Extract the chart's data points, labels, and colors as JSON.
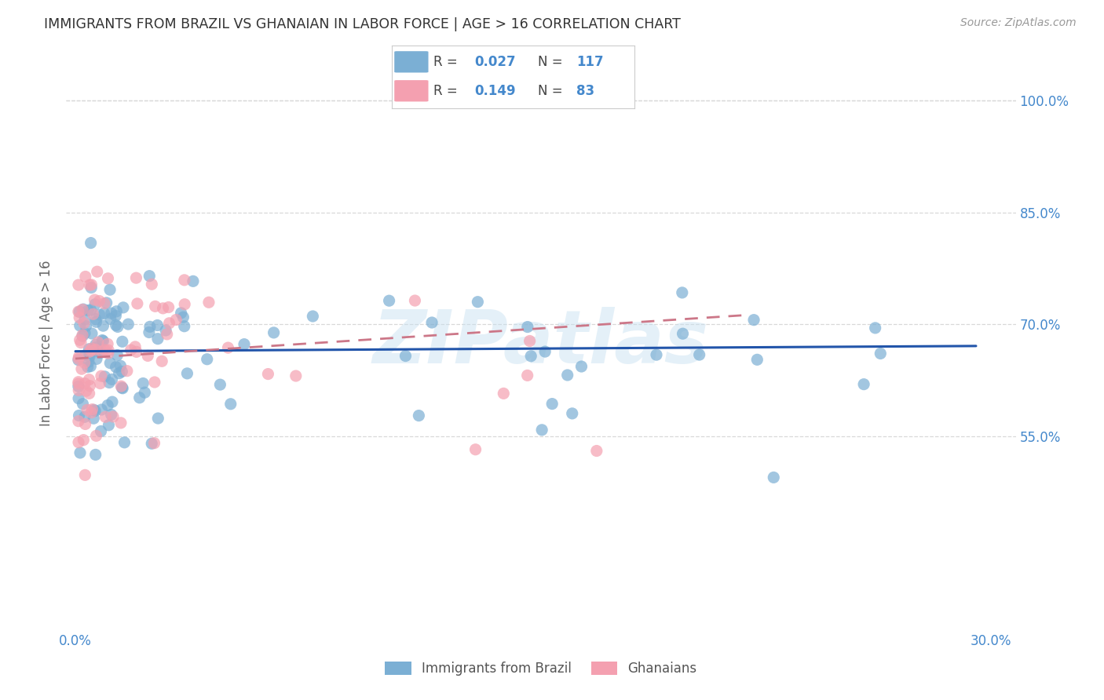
{
  "title": "IMMIGRANTS FROM BRAZIL VS GHANAIAN IN LABOR FORCE | AGE > 16 CORRELATION CHART",
  "source": "Source: ZipAtlas.com",
  "ylabel": "In Labor Force | Age > 16",
  "brazil_color": "#7bafd4",
  "ghana_color": "#f4a0b0",
  "brazil_line_color": "#2255aa",
  "ghana_line_color": "#cc7788",
  "brazil_r": 0.027,
  "brazil_n": 117,
  "ghana_r": 0.149,
  "ghana_n": 83,
  "watermark": "ZIPatlas",
  "background_color": "#ffffff",
  "grid_color": "#d8d8d8",
  "text_color": "#4488cc",
  "title_color": "#333333",
  "source_color": "#999999",
  "ylabel_color": "#666666",
  "ytick_positions": [
    0.55,
    0.7,
    0.85,
    1.0
  ],
  "ytick_labels": [
    "55.0%",
    "70.0%",
    "85.0%",
    "100.0%"
  ],
  "xtick_positions": [
    0.0,
    0.05,
    0.1,
    0.15,
    0.2,
    0.25,
    0.3
  ],
  "xtick_labels": [
    "0.0%",
    "",
    "",
    "",
    "",
    "",
    "30.0%"
  ],
  "xlim": [
    -0.003,
    0.308
  ],
  "ylim": [
    0.29,
    1.06
  ],
  "legend_brazil_label": "Immigrants from Brazil",
  "legend_ghana_label": "Ghanaians"
}
